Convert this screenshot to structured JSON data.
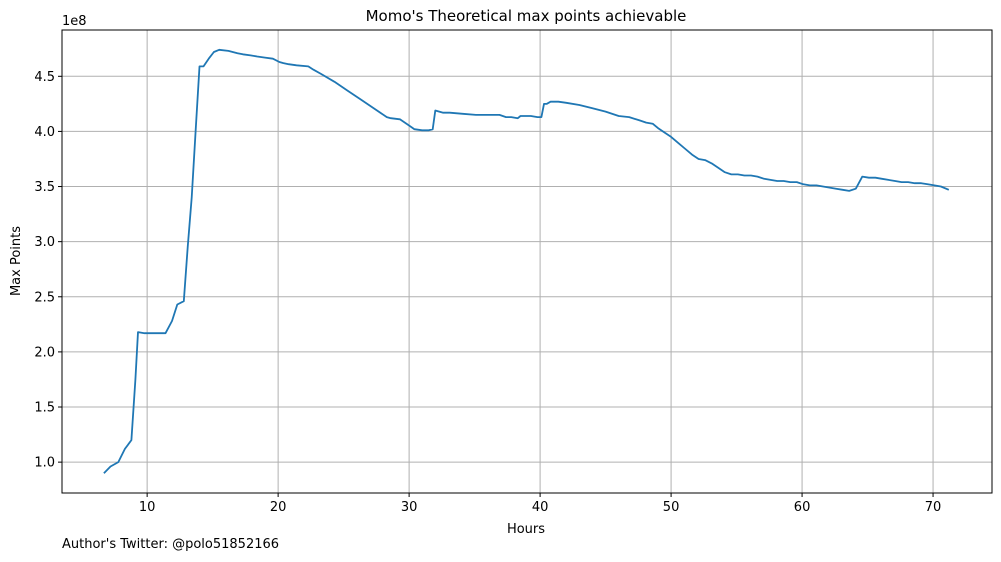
{
  "chart_data": {
    "type": "line",
    "title": "Momo's Theoretical max points achievable",
    "xlabel": "Hours",
    "ylabel": "Max Points",
    "y_offset_label": "1e8",
    "xlim": [
      3.5,
      74.5
    ],
    "ylim": [
      0.72,
      4.92
    ],
    "x_ticks": [
      10,
      20,
      30,
      40,
      50,
      60,
      70
    ],
    "y_ticks": [
      1.0,
      1.5,
      2.0,
      2.5,
      3.0,
      3.5,
      4.0,
      4.5
    ],
    "y_tick_labels": [
      "1.0",
      "1.5",
      "2.0",
      "2.5",
      "3.0",
      "3.5",
      "4.0",
      "4.5"
    ],
    "grid": true,
    "line_color": "#1f77b4",
    "series": [
      {
        "x": [
          6.7,
          7.2,
          7.8,
          8.3,
          8.8,
          9.1,
          9.3,
          9.8,
          10.3,
          11.0,
          11.4,
          11.9,
          12.3,
          12.8,
          13.1,
          13.4,
          13.7,
          14.0,
          14.3,
          14.7,
          15.1,
          15.5,
          16.2,
          16.9,
          17.3,
          17.9,
          18.4,
          19.0,
          19.6,
          20.1,
          20.4,
          20.8,
          21.4,
          22.3,
          22.7,
          23.3,
          24.3,
          25.3,
          26.3,
          27.3,
          28.3,
          28.6,
          29.3,
          29.8,
          30.4,
          31.0,
          31.5,
          31.8,
          32.0,
          32.3,
          32.6,
          33.1,
          34.1,
          35.1,
          36.1,
          36.9,
          37.4,
          37.8,
          38.3,
          38.5,
          38.8,
          39.3,
          39.8,
          40.1,
          40.3,
          40.5,
          40.8,
          41.0,
          41.4,
          42.0,
          43.0,
          44.0,
          45.0,
          46.0,
          46.8,
          47.6,
          48.1,
          48.6,
          49.0,
          49.5,
          50.0,
          50.5,
          51.0,
          51.6,
          52.1,
          52.6,
          53.1,
          53.6,
          54.1,
          54.6,
          55.1,
          55.6,
          56.1,
          56.6,
          57.1,
          57.6,
          58.1,
          58.6,
          59.1,
          59.6,
          60.1,
          60.6,
          61.1,
          61.6,
          62.1,
          62.6,
          63.1,
          63.6,
          64.1,
          64.6,
          65.1,
          65.6,
          66.1,
          66.6,
          67.1,
          67.6,
          68.1,
          68.6,
          69.1,
          69.6,
          70.1,
          70.6,
          71.2
        ],
        "y": [
          0.9,
          0.96,
          1.0,
          1.12,
          1.2,
          1.75,
          2.18,
          2.17,
          2.17,
          2.17,
          2.17,
          2.28,
          2.43,
          2.46,
          2.95,
          3.4,
          4.0,
          4.59,
          4.59,
          4.66,
          4.72,
          4.74,
          4.73,
          4.71,
          4.7,
          4.69,
          4.68,
          4.67,
          4.66,
          4.63,
          4.62,
          4.61,
          4.6,
          4.59,
          4.56,
          4.52,
          4.45,
          4.37,
          4.29,
          4.21,
          4.13,
          4.12,
          4.11,
          4.07,
          4.02,
          4.01,
          4.01,
          4.02,
          4.19,
          4.18,
          4.17,
          4.17,
          4.16,
          4.15,
          4.15,
          4.15,
          4.13,
          4.13,
          4.12,
          4.14,
          4.14,
          4.14,
          4.13,
          4.13,
          4.25,
          4.25,
          4.27,
          4.27,
          4.27,
          4.26,
          4.24,
          4.21,
          4.18,
          4.14,
          4.13,
          4.1,
          4.08,
          4.07,
          4.03,
          3.99,
          3.95,
          3.9,
          3.85,
          3.79,
          3.75,
          3.74,
          3.71,
          3.67,
          3.63,
          3.61,
          3.61,
          3.6,
          3.6,
          3.59,
          3.57,
          3.56,
          3.55,
          3.55,
          3.54,
          3.54,
          3.52,
          3.51,
          3.51,
          3.5,
          3.49,
          3.48,
          3.47,
          3.46,
          3.48,
          3.59,
          3.58,
          3.58,
          3.57,
          3.56,
          3.55,
          3.54,
          3.54,
          3.53,
          3.53,
          3.52,
          3.51,
          3.5,
          3.47
        ]
      }
    ]
  },
  "footer": {
    "text": "Author's Twitter: @polo51852166"
  }
}
